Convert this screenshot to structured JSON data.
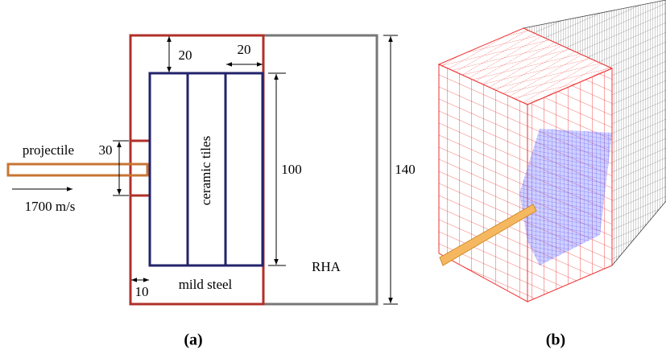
{
  "panel_a": {
    "projectile": "projectile",
    "projectile_diameter": "30",
    "velocity": "1700 m/s",
    "top_gap": "20",
    "side_gap": "20",
    "tile_height": "100",
    "total_height": "140",
    "tiles": "ceramic tiles",
    "casing": "mild steel",
    "backing": "RHA",
    "casing_thickness": "10",
    "caption": "(a)"
  },
  "panel_b": {
    "caption": "(b)"
  }
}
